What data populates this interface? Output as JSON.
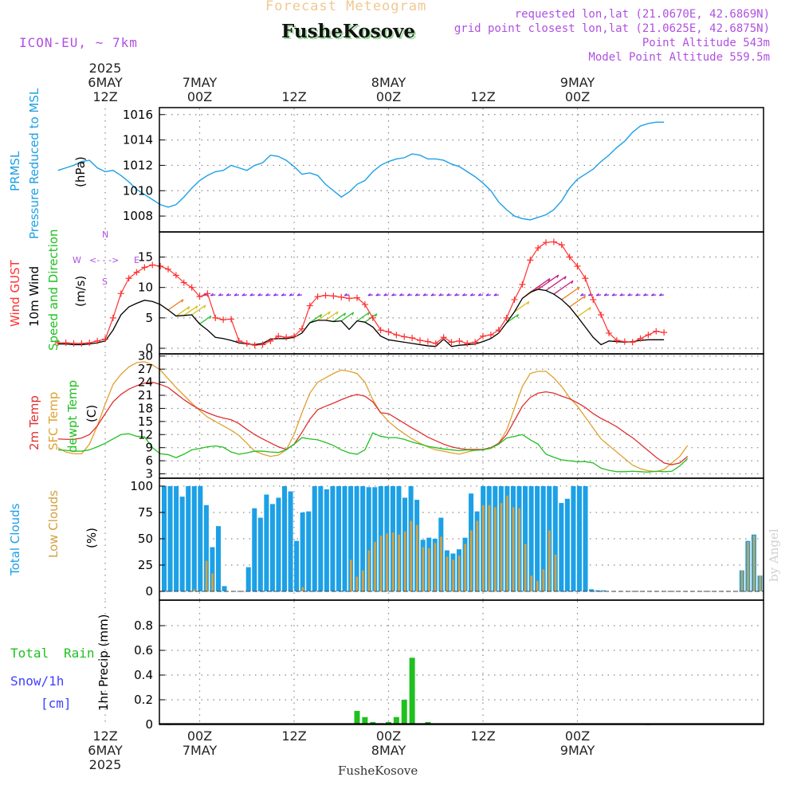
{
  "header": {
    "title": "Forecast Meteogram",
    "location": "FusheKosove",
    "model": "ICON-EU, ~ 7km",
    "requested": "requested lon,lat (21.0670E, 42.6869N)",
    "closest": "grid point closest lon,lat (21.0625E, 42.6875N)",
    "point_alt": "Point Altitude 543m",
    "model_alt": "Model Point Altitude 559.5m",
    "footer_location": "FusheKosove",
    "credit": "by Angel"
  },
  "colors": {
    "pressure": "#1ca0e6",
    "gust": "#ff3030",
    "wind10m": "#000000",
    "wind_dir": "#20c020",
    "temp2m": "#e03030",
    "sfc_temp": "#e0a030",
    "dewpt": "#20c020",
    "total_clouds": "#1ca0e6",
    "low_clouds": "#d4a040",
    "rain": "#20c020",
    "snow": "#4040ff",
    "purple": "#b050e0",
    "header_orange": "#f0c890"
  },
  "time_axis": {
    "top_labels": [
      {
        "idx": 0,
        "lines": [
          "2025",
          "6MAY",
          "12Z"
        ]
      },
      {
        "idx": 1,
        "lines": [
          "7MAY",
          "00Z"
        ]
      },
      {
        "idx": 2,
        "lines": [
          "12Z"
        ]
      },
      {
        "idx": 3,
        "lines": [
          "8MAY",
          "00Z"
        ]
      },
      {
        "idx": 4,
        "lines": [
          "12Z"
        ]
      },
      {
        "idx": 5,
        "lines": [
          "9MAY",
          "00Z"
        ]
      }
    ],
    "bottom_labels": [
      {
        "idx": 0,
        "lines": [
          "12Z",
          "6MAY",
          "2025"
        ]
      },
      {
        "idx": 1,
        "lines": [
          "00Z",
          "7MAY"
        ]
      },
      {
        "idx": 2,
        "lines": [
          "12Z"
        ]
      },
      {
        "idx": 3,
        "lines": [
          "00Z",
          "8MAY"
        ]
      },
      {
        "idx": 4,
        "lines": [
          "12Z"
        ]
      },
      {
        "idx": 5,
        "lines": [
          "00Z",
          "9MAY"
        ]
      }
    ]
  },
  "chart_data": [
    {
      "type": "line",
      "panel": "pressure",
      "ylabel_parts": [
        "PRMSL",
        "Pressure Reduced to MSL"
      ],
      "unit": "(hPa)",
      "ylim": [
        1007,
        1016.3
      ],
      "yticks": [
        "1008",
        "1010",
        "1012",
        "1014",
        "1016"
      ],
      "x_start_hours": -6,
      "x_step_hours": 1,
      "values": [
        1011.6,
        1011.8,
        1012.0,
        1012.3,
        1012.4,
        1011.8,
        1011.5,
        1011.6,
        1011.2,
        1010.7,
        1010.1,
        1009.7,
        1009.3,
        1008.9,
        1008.7,
        1008.9,
        1009.5,
        1010.2,
        1010.8,
        1011.2,
        1011.5,
        1011.6,
        1012.0,
        1011.8,
        1011.6,
        1012.0,
        1012.2,
        1012.8,
        1012.7,
        1012.4,
        1011.9,
        1011.3,
        1011.4,
        1011.2,
        1010.5,
        1010.0,
        1009.5,
        1009.9,
        1010.5,
        1010.8,
        1011.5,
        1012.0,
        1012.3,
        1012.5,
        1012.6,
        1012.9,
        1012.8,
        1012.5,
        1012.5,
        1012.4,
        1012.1,
        1011.9,
        1011.5,
        1011.1,
        1010.6,
        1010.0,
        1009.1,
        1008.5,
        1008.0,
        1007.8,
        1007.7,
        1007.9,
        1008.1,
        1008.5,
        1009.2,
        1010.2,
        1010.9,
        1011.3,
        1011.7,
        1012.3,
        1012.8,
        1013.4,
        1013.9,
        1014.6,
        1015.1,
        1015.3,
        1015.4,
        1015.4
      ]
    },
    {
      "type": "line",
      "panel": "wind",
      "ylabel_parts": [
        "Wind GUST",
        "10m Wind",
        "Speed and Direction"
      ],
      "unit": "(m/s)",
      "compass": [
        "N",
        "W",
        "<-",
        "-",
        "->",
        "E",
        "S"
      ],
      "ylim": [
        0,
        19
      ],
      "yticks": [
        "0",
        "5",
        "10",
        "15"
      ],
      "x_start_hours": -6,
      "x_step_hours": 1,
      "series": [
        {
          "name": "Wind GUST",
          "values": [
            0.9,
            0.9,
            0.8,
            0.8,
            0.9,
            1.2,
            1.5,
            5.0,
            9.0,
            11.5,
            12.5,
            13.3,
            13.7,
            13.5,
            13.0,
            12.0,
            10.8,
            10.0,
            8.5,
            9.0,
            5.0,
            4.7,
            4.8,
            1.2,
            0.8,
            0.5,
            0.6,
            1.2,
            2.0,
            1.8,
            2.0,
            3.2,
            7.0,
            8.5,
            8.7,
            8.6,
            8.4,
            8.2,
            8.3,
            7.2,
            5.0,
            3.0,
            2.7,
            2.2,
            1.9,
            1.7,
            1.3,
            1.1,
            0.8,
            1.8,
            1.0,
            1.2,
            0.8,
            1.0,
            2.0,
            2.2,
            3.0,
            5.0,
            8.0,
            10.5,
            14.5,
            16.5,
            17.4,
            17.5,
            17.0,
            15.0,
            13.5,
            11.5,
            8.0,
            5.5,
            2.5,
            1.3,
            1.1,
            1.0,
            1.6,
            2.2,
            2.8,
            2.6
          ]
        },
        {
          "name": "10m Wind",
          "values": [
            0.7,
            0.7,
            0.6,
            0.6,
            0.7,
            0.9,
            1.2,
            3.0,
            5.5,
            6.8,
            7.4,
            7.9,
            7.7,
            7.2,
            6.3,
            5.3,
            5.4,
            5.5,
            4.0,
            3.0,
            1.8,
            1.6,
            1.3,
            0.9,
            0.7,
            0.6,
            0.8,
            1.5,
            1.6,
            1.6,
            1.8,
            2.5,
            4.2,
            4.6,
            4.6,
            4.4,
            4.5,
            3.1,
            4.5,
            4.3,
            3.5,
            2.0,
            1.4,
            1.2,
            1.0,
            0.8,
            0.6,
            0.4,
            0.3,
            1.5,
            0.3,
            0.5,
            0.6,
            0.7,
            1.1,
            1.6,
            2.5,
            4.2,
            6.0,
            8.2,
            9.2,
            9.7,
            9.5,
            8.9,
            8.0,
            6.8,
            5.2,
            3.5,
            1.8,
            0.6,
            1.2,
            1.1,
            1.0,
            1.1,
            1.3,
            1.4,
            1.4,
            1.4
          ]
        }
      ]
    },
    {
      "type": "line",
      "panel": "temperature",
      "ylabel_parts": [
        "2m Temp",
        "SFC Temp",
        "dewpt Temp"
      ],
      "unit": "(C)",
      "ylim": [
        2,
        30.5
      ],
      "yticks": [
        "3",
        "6",
        "9",
        "12",
        "15",
        "18",
        "21",
        "24",
        "27",
        "30"
      ],
      "x_start_hours": -6,
      "x_step_hours": 1,
      "series": [
        {
          "name": "2m Temp",
          "values": [
            11.0,
            10.9,
            10.9,
            11.2,
            12.0,
            14.0,
            16.8,
            19.5,
            21.2,
            22.4,
            23.2,
            23.8,
            24.0,
            23.5,
            22.8,
            21.4,
            20.0,
            18.8,
            17.8,
            17.0,
            16.3,
            15.8,
            15.4,
            14.5,
            13.2,
            12.0,
            11.0,
            10.1,
            9.2,
            8.6,
            9.8,
            12.5,
            15.5,
            17.7,
            18.5,
            19.2,
            20.0,
            20.7,
            21.2,
            20.8,
            19.5,
            17.0,
            16.8,
            15.7,
            14.6,
            13.5,
            12.5,
            11.4,
            10.6,
            9.8,
            9.2,
            8.8,
            8.6,
            8.6,
            8.6,
            9.0,
            10.0,
            12.0,
            15.2,
            18.5,
            20.5,
            21.5,
            21.8,
            21.5,
            20.8,
            20.2,
            19.3,
            18.2,
            16.8,
            15.7,
            14.8,
            13.8,
            12.5,
            11.3,
            9.8,
            8.3,
            6.8,
            5.5,
            5.1,
            5.5,
            7.0
          ]
        },
        {
          "name": "SFC Temp",
          "values": [
            9.0,
            8.0,
            7.6,
            7.6,
            9.8,
            14.0,
            19.0,
            23.5,
            25.8,
            27.5,
            28.5,
            28.7,
            28.0,
            26.8,
            24.8,
            22.8,
            21.0,
            19.2,
            17.5,
            16.0,
            15.0,
            14.0,
            13.0,
            11.8,
            10.0,
            8.2,
            7.5,
            7.0,
            7.3,
            8.5,
            12.0,
            17.0,
            21.5,
            24.0,
            25.0,
            26.0,
            26.8,
            26.5,
            26.0,
            24.0,
            20.0,
            17.0,
            15.0,
            13.5,
            12.2,
            11.0,
            10.0,
            9.2,
            8.5,
            8.2,
            7.8,
            7.5,
            8.0,
            8.4,
            8.6,
            8.8,
            10.0,
            13.0,
            18.0,
            23.0,
            26.0,
            26.5,
            26.5,
            25.0,
            23.0,
            20.5,
            18.5,
            16.0,
            13.5,
            11.0,
            9.5,
            8.0,
            6.5,
            5.0,
            4.2,
            3.7,
            3.5,
            4.0,
            5.5,
            7.0,
            9.5
          ]
        },
        {
          "name": "dewpt Temp",
          "values": [
            8.5,
            8.4,
            8.2,
            8.2,
            8.5,
            9.2,
            10.0,
            11.0,
            12.0,
            12.2,
            11.6,
            11.5,
            9.0,
            7.6,
            7.4,
            6.7,
            7.5,
            8.5,
            8.8,
            9.2,
            9.4,
            9.1,
            8.0,
            7.5,
            7.8,
            8.2,
            8.2,
            8.0,
            7.9,
            8.5,
            9.8,
            11.3,
            11.0,
            10.8,
            10.2,
            9.5,
            8.5,
            7.8,
            7.5,
            8.5,
            12.4,
            11.6,
            11.3,
            11.3,
            10.9,
            10.3,
            9.8,
            9.3,
            9.0,
            8.7,
            8.5,
            8.3,
            8.5,
            8.4,
            8.5,
            8.9,
            9.8,
            11.2,
            11.6,
            12.0,
            10.8,
            9.8,
            7.5,
            6.8,
            6.2,
            6.0,
            5.8,
            5.8,
            5.5,
            4.3,
            3.8,
            3.5,
            3.5,
            3.6,
            3.5,
            3.4,
            3.6,
            3.5,
            3.6,
            4.8,
            6.5
          ]
        }
      ]
    },
    {
      "type": "bar",
      "panel": "clouds",
      "ylabel_parts": [
        "Total Clouds",
        "Low Clouds"
      ],
      "unit": "(%)",
      "ylim": [
        0,
        103
      ],
      "yticks": [
        "0",
        "25",
        "50",
        "75",
        "100"
      ],
      "x_start_hours": -6,
      "x_step_hours": 1,
      "series": [
        {
          "name": "Total Clouds",
          "values": [
            100,
            100,
            100,
            90,
            100,
            100,
            100,
            82,
            42,
            62,
            5,
            0,
            0,
            0,
            23,
            79,
            70,
            92,
            83,
            89,
            100,
            95,
            48,
            75,
            76,
            100,
            100,
            97,
            100,
            100,
            100,
            100,
            100,
            100,
            99,
            99,
            100,
            100,
            100,
            100,
            89,
            100,
            87,
            49,
            51,
            50,
            70,
            39,
            36,
            40,
            51,
            93,
            76,
            100,
            100,
            100,
            100,
            100,
            100,
            100,
            100,
            100,
            100,
            100,
            100,
            100,
            84,
            88,
            100,
            100,
            100,
            2,
            1,
            1,
            0,
            0,
            0,
            0,
            0,
            0,
            0,
            0,
            0,
            0,
            0,
            0,
            0,
            0,
            0,
            0,
            0,
            0,
            0,
            0,
            0,
            0,
            20,
            48,
            54,
            15
          ]
        },
        {
          "name": "Low Clouds",
          "values": [
            0,
            0,
            0,
            0,
            0,
            2,
            0,
            29,
            17,
            0,
            0,
            0,
            0,
            0,
            0,
            0,
            0,
            0,
            0,
            0,
            0,
            0,
            0,
            4,
            0,
            0,
            0,
            0,
            0,
            0,
            0,
            30,
            14,
            20,
            39,
            47,
            53,
            55,
            56,
            54,
            57,
            67,
            63,
            42,
            41,
            46,
            52,
            33,
            30,
            34,
            45,
            58,
            67,
            82,
            82,
            80,
            84,
            91,
            80,
            79,
            45,
            15,
            10,
            21,
            58,
            35,
            0,
            0,
            0,
            0,
            0,
            0,
            0,
            0,
            0,
            0,
            0,
            0,
            0,
            0,
            0,
            0,
            0,
            0,
            0,
            0,
            0,
            0,
            0,
            0,
            0,
            0,
            0,
            0,
            0,
            0,
            20,
            47,
            53,
            15
          ]
        }
      ]
    },
    {
      "type": "bar",
      "panel": "precip",
      "ylabel_parts": [
        "Total",
        "Rain",
        "Snow/1h",
        "[cm]"
      ],
      "unit": "1hr Precip (mm)",
      "ylim": [
        0,
        1.0
      ],
      "yticks": [
        "0",
        "0.2",
        "0.4",
        "0.6",
        "0.8"
      ],
      "x_start_hours": -6,
      "x_step_hours": 1,
      "series": [
        {
          "name": "Total Rain",
          "bars": [
            {
              "hour": 8,
              "value": 0.005
            },
            {
              "hour": 32,
              "value": 0.11
            },
            {
              "hour": 33,
              "value": 0.06
            },
            {
              "hour": 34,
              "value": 0.02
            },
            {
              "hour": 35,
              "value": 0.01
            },
            {
              "hour": 36,
              "value": 0.02
            },
            {
              "hour": 37,
              "value": 0.06
            },
            {
              "hour": 38,
              "value": 0.2
            },
            {
              "hour": 39,
              "value": 0.54
            },
            {
              "hour": 41,
              "value": 0.02
            },
            {
              "hour": 69,
              "value": 0.005
            }
          ]
        }
      ]
    }
  ]
}
